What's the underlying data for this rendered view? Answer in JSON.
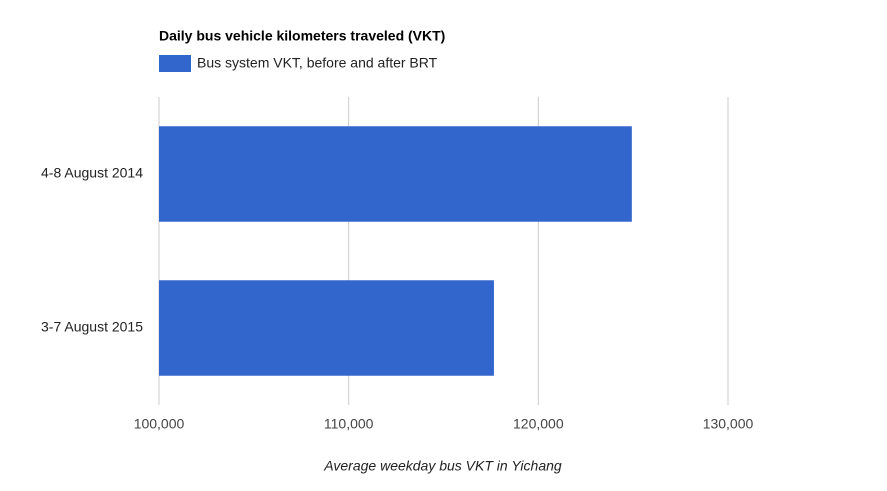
{
  "chart_data": {
    "type": "bar",
    "orientation": "horizontal",
    "title": "Daily bus vehicle kilometers traveled (VKT)",
    "categories": [
      "4-8 August 2014",
      "3-7 August 2015"
    ],
    "series": [
      {
        "name": "Bus system VKT, before and after BRT",
        "color": "#3366cc",
        "values": [
          124930,
          117660
        ]
      }
    ],
    "xlim": [
      100000,
      130000
    ],
    "xticks": [
      {
        "value": 100000,
        "label": "100,000"
      },
      {
        "value": 110000,
        "label": "110,000"
      },
      {
        "value": 120000,
        "label": "120,000"
      },
      {
        "value": 130000,
        "label": "130,000"
      }
    ],
    "x_label": "Average weekday bus VKT in Yichang",
    "grid": true
  }
}
